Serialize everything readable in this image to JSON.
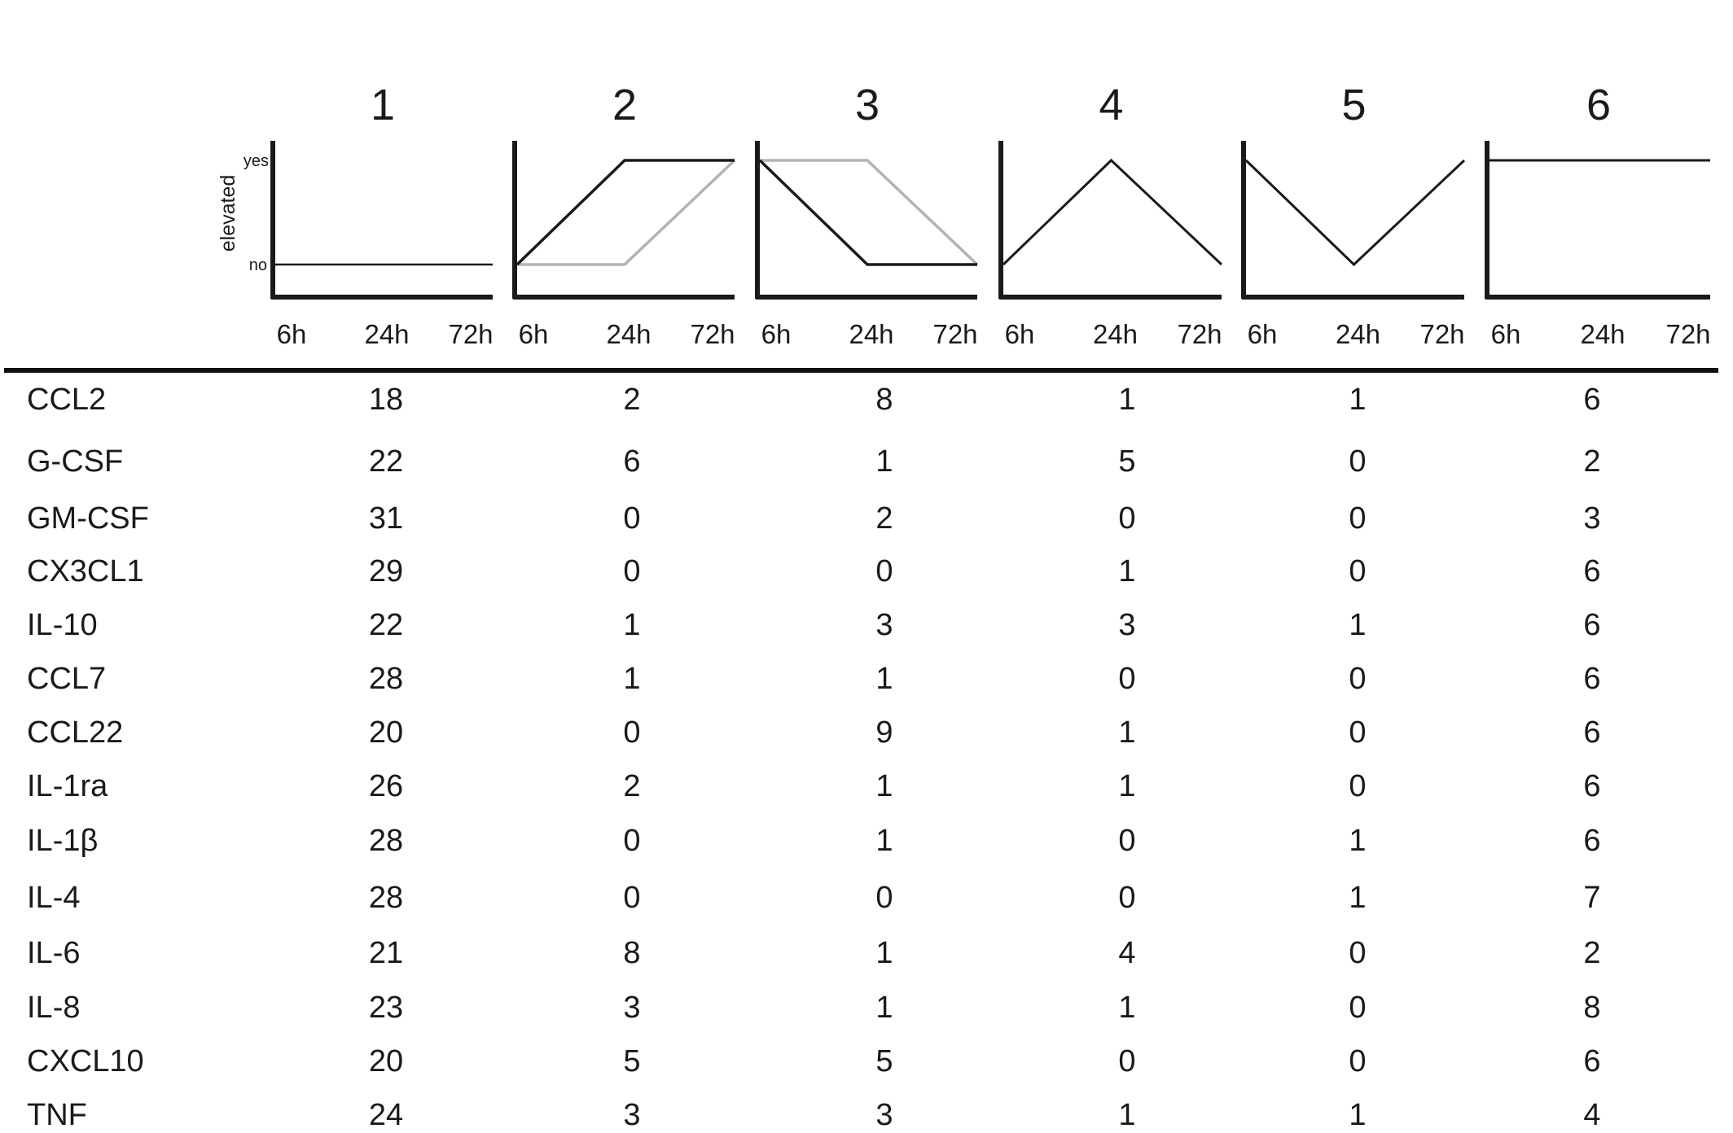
{
  "chart_data": {
    "type": "table",
    "y_axis": {
      "title": "elevated",
      "levels": [
        "yes",
        "no"
      ]
    },
    "time_points": [
      "6h",
      "24h",
      "72h"
    ],
    "patterns": [
      {
        "id": "1",
        "series": [
          {
            "color": "#1a1a1a",
            "elevated": [
              0,
              0,
              0
            ]
          }
        ]
      },
      {
        "id": "2",
        "series": [
          {
            "color": "#1a1a1a",
            "elevated": [
              0,
              1,
              1
            ]
          },
          {
            "color": "#b3b3b3",
            "elevated": [
              0,
              0,
              1
            ]
          }
        ]
      },
      {
        "id": "3",
        "series": [
          {
            "color": "#1a1a1a",
            "elevated": [
              1,
              0,
              0
            ]
          },
          {
            "color": "#b3b3b3",
            "elevated": [
              1,
              1,
              0
            ]
          }
        ]
      },
      {
        "id": "4",
        "series": [
          {
            "color": "#1a1a1a",
            "elevated": [
              0,
              1,
              0
            ]
          }
        ]
      },
      {
        "id": "5",
        "series": [
          {
            "color": "#1a1a1a",
            "elevated": [
              1,
              0,
              1
            ]
          }
        ]
      },
      {
        "id": "6",
        "series": [
          {
            "color": "#1a1a1a",
            "elevated": [
              1,
              1,
              1
            ]
          }
        ]
      }
    ],
    "rows": [
      {
        "cytokine": "CCL2",
        "counts": [
          "18",
          "2",
          "8",
          "1",
          "1",
          "6"
        ]
      },
      {
        "cytokine": "G-CSF",
        "counts": [
          "22",
          "6",
          "1",
          "5",
          "0",
          "2"
        ]
      },
      {
        "cytokine": "GM-CSF",
        "counts": [
          "31",
          "0",
          "2",
          "0",
          "0",
          "3"
        ]
      },
      {
        "cytokine": "CX3CL1",
        "counts": [
          "29",
          "0",
          "0",
          "1",
          "0",
          "6"
        ]
      },
      {
        "cytokine": "IL-10",
        "counts": [
          "22",
          "1",
          "3",
          "3",
          "1",
          "6"
        ]
      },
      {
        "cytokine": "CCL7",
        "counts": [
          "28",
          "1",
          "1",
          "0",
          "0",
          "6"
        ]
      },
      {
        "cytokine": "CCL22",
        "counts": [
          "20",
          "0",
          "9",
          "1",
          "0",
          "6"
        ]
      },
      {
        "cytokine": "IL-1ra",
        "counts": [
          "26",
          "2",
          "1",
          "1",
          "0",
          "6"
        ]
      },
      {
        "cytokine": "IL-1β",
        "counts": [
          "28",
          "0",
          "1",
          "0",
          "1",
          "6"
        ]
      },
      {
        "cytokine": "IL-4",
        "counts": [
          "28",
          "0",
          "0",
          "0",
          "1",
          "7"
        ]
      },
      {
        "cytokine": "IL-6",
        "counts": [
          "21",
          "8",
          "1",
          "4",
          "0",
          "2"
        ]
      },
      {
        "cytokine": "IL-8",
        "counts": [
          "23",
          "3",
          "1",
          "1",
          "0",
          "8"
        ]
      },
      {
        "cytokine": "CXCL10",
        "counts": [
          "20",
          "5",
          "5",
          "0",
          "0",
          "6"
        ]
      },
      {
        "cytokine": "TNF",
        "counts": [
          "24",
          "3",
          "3",
          "1",
          "1",
          "4"
        ]
      }
    ]
  }
}
